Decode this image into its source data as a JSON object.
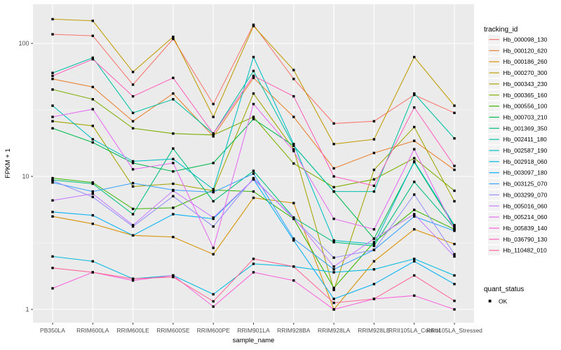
{
  "figure": {
    "background": "#FFFFFF",
    "panel_bg": "#EBEBEB",
    "grid_color": "#FFFFFF",
    "tick_color": "#333333",
    "tick_label_color": "#4D4D4D",
    "axis_title_color": "#000000",
    "legend_title_color": "#000000",
    "legend_key_bg": "#F2F2F2",
    "marker_color": "#000000"
  },
  "chart_data": {
    "type": "line",
    "title": "",
    "xlabel": "sample_name",
    "ylabel": "FPKM + 1",
    "y_scale": "log10",
    "yticks": [
      1,
      10,
      100
    ],
    "ylim": [
      0.79,
      197
    ],
    "grid": "on",
    "marker": "black-square",
    "categories": [
      "PB350LA",
      "RRIM600LA",
      "RRIM600LE",
      "RRIM600SE",
      "RRIM600PE",
      "RRIM901LA",
      "RRIM928BA",
      "RRIM928LA",
      "RRIM928LE",
      "RRII105LA_Control",
      "RRII105LA_Stressed"
    ],
    "series": [
      {
        "name": "Hb_000098_130",
        "color": "#F8766D",
        "values": [
          117,
          114,
          49,
          108,
          35,
          138,
          54,
          25,
          26,
          41,
          30
        ]
      },
      {
        "name": "Hb_000120_620",
        "color": "#EA8331",
        "values": [
          54,
          47,
          26,
          42,
          20,
          55,
          28,
          11.5,
          15,
          18.5,
          11.2
        ]
      },
      {
        "name": "Hb_000186_260",
        "color": "#D89000",
        "values": [
          5.0,
          4.4,
          3.6,
          3.5,
          2.6,
          6.9,
          6.3,
          1.0,
          2.3,
          4.0,
          3.1
        ]
      },
      {
        "name": "Hb_000270_300",
        "color": "#C09B00",
        "values": [
          152,
          148,
          61,
          112,
          28,
          135,
          63,
          17.5,
          19,
          79,
          34
        ]
      },
      {
        "name": "Hb_000343_230",
        "color": "#A3A500",
        "values": [
          26,
          24,
          8.4,
          8.8,
          7.8,
          42,
          16,
          1.4,
          11.2,
          23.5,
          6.5
        ]
      },
      {
        "name": "Hb_000365_160",
        "color": "#7CAE00",
        "values": [
          45,
          38,
          23,
          21,
          20.5,
          28,
          12.5,
          8.3,
          9.5,
          13.7,
          7.8
        ]
      },
      {
        "name": "Hb_000556_100",
        "color": "#39B600",
        "values": [
          9.7,
          9.0,
          5.7,
          5.8,
          7.9,
          7.7,
          4.8,
          1.45,
          3.2,
          5.6,
          4.0
        ]
      },
      {
        "name": "Hb_000703_210",
        "color": "#00BB4E",
        "values": [
          23,
          18,
          12.6,
          10.9,
          12.6,
          27,
          17,
          7.7,
          3.4,
          12.8,
          4.2
        ]
      },
      {
        "name": "Hb_001369_350",
        "color": "#00BF7D",
        "values": [
          9.4,
          8.8,
          5.2,
          16.2,
          6.5,
          11,
          4.9,
          3.2,
          3.0,
          9.1,
          4.1
        ]
      },
      {
        "name": "Hb_002411_180",
        "color": "#00C1A3",
        "values": [
          60,
          78,
          30,
          38,
          21,
          62,
          17,
          7.7,
          7.7,
          42,
          19.3
        ]
      },
      {
        "name": "Hb_002587_190",
        "color": "#00BFC4",
        "values": [
          34,
          19,
          13,
          13.5,
          8.0,
          79,
          17.5,
          3.3,
          3.1,
          13,
          4.3
        ]
      },
      {
        "name": "Hb_002918_060",
        "color": "#00BAE0",
        "values": [
          2.5,
          2.3,
          1.7,
          1.8,
          1.3,
          2.2,
          2.1,
          1.9,
          2.0,
          2.4,
          1.8
        ]
      },
      {
        "name": "Hb_003097_180",
        "color": "#00B0F6",
        "values": [
          5.4,
          5.1,
          3.6,
          5.2,
          4.8,
          9.5,
          3.3,
          1.2,
          1.55,
          2.3,
          1.55
        ]
      },
      {
        "name": "Hb_003125_070",
        "color": "#35A2FF",
        "values": [
          9.0,
          7.7,
          8.9,
          7.9,
          7.6,
          10.5,
          3.4,
          2.0,
          2.8,
          5.0,
          3.9
        ]
      },
      {
        "name": "Hb_003299_070",
        "color": "#9590FF",
        "values": [
          9.3,
          7.0,
          4.2,
          7.1,
          4.2,
          9.7,
          4.8,
          2.45,
          2.8,
          7.3,
          2.6
        ]
      },
      {
        "name": "Hb_005016_060",
        "color": "#C77CFF",
        "values": [
          6.6,
          7.4,
          4.3,
          7.8,
          4.9,
          9.5,
          4.9,
          2.1,
          3.4,
          5.2,
          2.5
        ]
      },
      {
        "name": "Hb_005214_060",
        "color": "#E76BF3",
        "values": [
          28,
          32,
          11.3,
          12.6,
          2.9,
          35,
          15.5,
          4.8,
          4.0,
          16,
          4.0
        ]
      },
      {
        "name": "Hb_005839_140",
        "color": "#FA62DB",
        "values": [
          1.44,
          1.9,
          1.65,
          1.8,
          1.05,
          1.9,
          1.65,
          1.0,
          1.2,
          1.27,
          1.0
        ]
      },
      {
        "name": "Hb_036790_130",
        "color": "#FF62BC",
        "values": [
          57,
          76,
          40,
          55,
          21,
          57,
          40,
          10,
          8.5,
          33,
          12
        ]
      },
      {
        "name": "Hb_110482_010",
        "color": "#FF6A98",
        "values": [
          2.05,
          1.9,
          1.7,
          1.75,
          1.15,
          2.4,
          2.1,
          1.12,
          1.2,
          1.8,
          1.16
        ]
      }
    ],
    "legend": {
      "title": "tracking_id",
      "position": "right"
    },
    "legend2": {
      "title": "quant_status",
      "items": [
        {
          "label": "OK",
          "marker": "black-square"
        }
      ]
    }
  }
}
